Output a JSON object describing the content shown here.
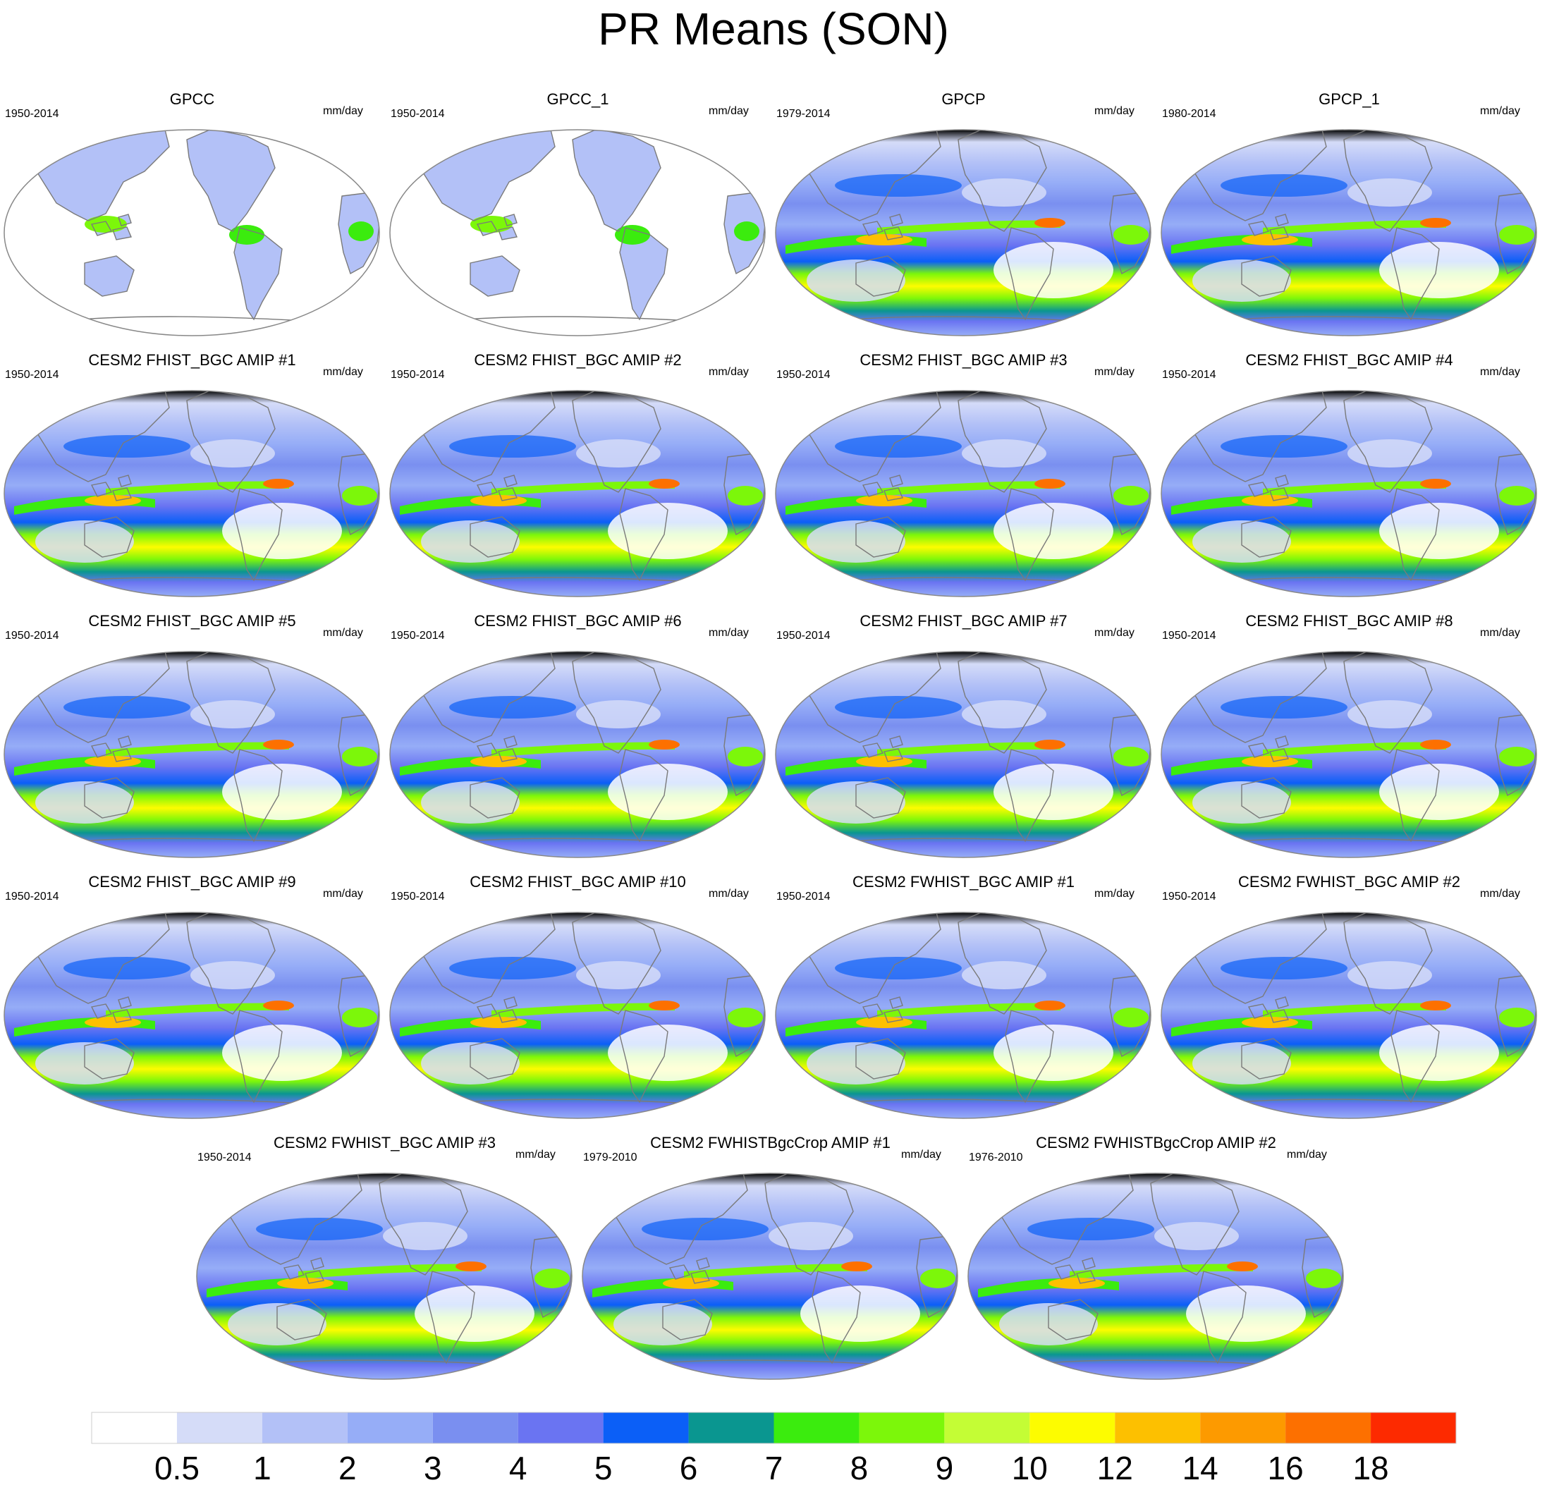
{
  "title": "PR Means (SON)",
  "chart_data": {
    "type": "heatmap",
    "title": "PR Means (SON)",
    "description_variable": "precipitation rate",
    "units": "mm/day",
    "projection": "Robinson, Pacific-centered",
    "panels": [
      {
        "name": "GPCC",
        "period": "1950-2014",
        "units": "mm/day",
        "land_only": true
      },
      {
        "name": "GPCC_1",
        "period": "1950-2014",
        "units": "mm/day",
        "land_only": true
      },
      {
        "name": "GPCP",
        "period": "1979-2014",
        "units": "mm/day",
        "land_only": false
      },
      {
        "name": "GPCP_1",
        "period": "1980-2014",
        "units": "mm/day",
        "land_only": false
      },
      {
        "name": "CESM2 FHIST_BGC AMIP #1",
        "period": "1950-2014",
        "units": "mm/day",
        "land_only": false
      },
      {
        "name": "CESM2 FHIST_BGC AMIP #2",
        "period": "1950-2014",
        "units": "mm/day",
        "land_only": false
      },
      {
        "name": "CESM2 FHIST_BGC AMIP #3",
        "period": "1950-2014",
        "units": "mm/day",
        "land_only": false
      },
      {
        "name": "CESM2 FHIST_BGC AMIP #4",
        "period": "1950-2014",
        "units": "mm/day",
        "land_only": false
      },
      {
        "name": "CESM2 FHIST_BGC AMIP #5",
        "period": "1950-2014",
        "units": "mm/day",
        "land_only": false
      },
      {
        "name": "CESM2 FHIST_BGC AMIP #6",
        "period": "1950-2014",
        "units": "mm/day",
        "land_only": false
      },
      {
        "name": "CESM2 FHIST_BGC AMIP #7",
        "period": "1950-2014",
        "units": "mm/day",
        "land_only": false
      },
      {
        "name": "CESM2 FHIST_BGC AMIP #8",
        "period": "1950-2014",
        "units": "mm/day",
        "land_only": false
      },
      {
        "name": "CESM2 FHIST_BGC AMIP #9",
        "period": "1950-2014",
        "units": "mm/day",
        "land_only": false
      },
      {
        "name": "CESM2 FHIST_BGC AMIP #10",
        "period": "1950-2014",
        "units": "mm/day",
        "land_only": false
      },
      {
        "name": "CESM2 FWHIST_BGC AMIP #1",
        "period": "1950-2014",
        "units": "mm/day",
        "land_only": false
      },
      {
        "name": "CESM2 FWHIST_BGC AMIP #2",
        "period": "1950-2014",
        "units": "mm/day",
        "land_only": false
      },
      {
        "name": "CESM2 FWHIST_BGC AMIP #3",
        "period": "1950-2014",
        "units": "mm/day",
        "land_only": false
      },
      {
        "name": "CESM2 FWHISTBgcCrop AMIP #1",
        "period": "1979-2010",
        "units": "mm/day",
        "land_only": false
      },
      {
        "name": "CESM2 FWHISTBgcCrop AMIP #2",
        "period": "1976-2010",
        "units": "mm/day",
        "land_only": false
      }
    ],
    "colorbar": {
      "levels": [
        "0.5",
        "1",
        "2",
        "3",
        "4",
        "5",
        "6",
        "7",
        "8",
        "9",
        "10",
        "12",
        "14",
        "16",
        "18"
      ],
      "colors": [
        "#ffffff",
        "#d5dcf8",
        "#b3c1f7",
        "#96adf7",
        "#7a8ff0",
        "#6a74f2",
        "#0b5ff7",
        "#0a9690",
        "#3bec0e",
        "#7cf70a",
        "#c4fd35",
        "#fdfc00",
        "#fdc000",
        "#fd9a00",
        "#fd7000",
        "#fd2a00"
      ]
    }
  }
}
